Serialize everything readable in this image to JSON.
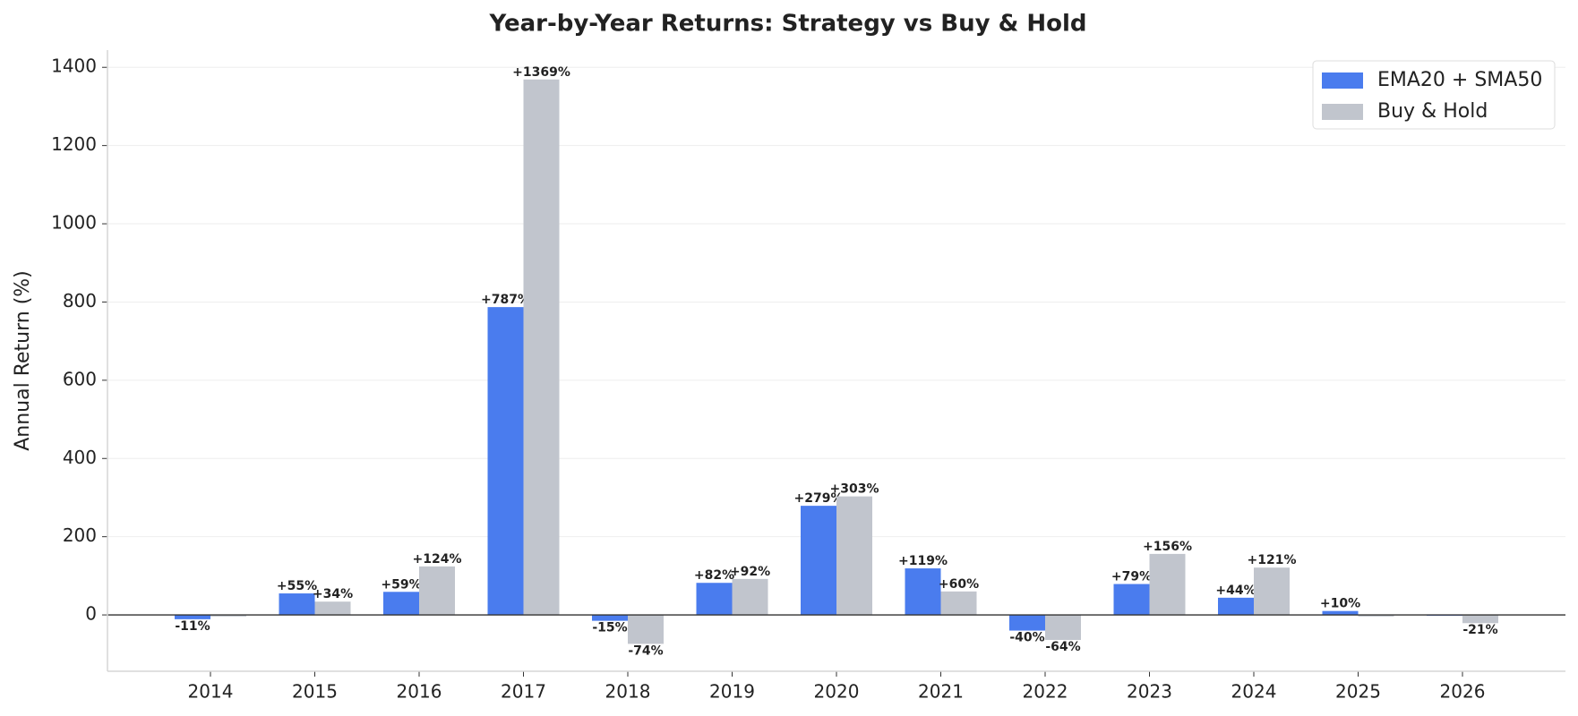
{
  "chart_data": {
    "type": "bar",
    "title": "Year-by-Year Returns: Strategy vs Buy & Hold",
    "y_label": "Annual Return (%)",
    "categories": [
      "2014",
      "2015",
      "2016",
      "2017",
      "2018",
      "2019",
      "2020",
      "2021",
      "2022",
      "2023",
      "2024",
      "2025",
      "2026"
    ],
    "series": [
      {
        "name": "EMA20 + SMA50",
        "color": "#4a7cee",
        "label_color": "#1f5bd6",
        "values": [
          -11,
          55,
          59,
          787,
          -15,
          82,
          279,
          119,
          -40,
          79,
          44,
          10,
          -2
        ],
        "value_labels": [
          "-11%",
          "+55%",
          "+59%",
          "+787%",
          "-15%",
          "+82%",
          "+279%",
          "+119%",
          "-40%",
          "+79%",
          "+44%",
          "+10%",
          null
        ]
      },
      {
        "name": "Buy & Hold",
        "color": "#c1c5cd",
        "label_color": "#5f5f5f",
        "values": [
          -4,
          34,
          124,
          1369,
          -74,
          92,
          303,
          60,
          -64,
          156,
          121,
          -4,
          -21
        ],
        "value_labels": [
          null,
          "+34%",
          "+124%",
          "+1369%",
          "-74%",
          "+92%",
          "+303%",
          "+60%",
          "-64%",
          "+156%",
          "+121%",
          null,
          "-21%"
        ]
      }
    ],
    "ylim": [
      -144,
      1444
    ],
    "yticks": [
      0,
      200,
      400,
      600,
      800,
      1000,
      1200,
      1400
    ],
    "grid": true,
    "legend": "upper-right"
  }
}
